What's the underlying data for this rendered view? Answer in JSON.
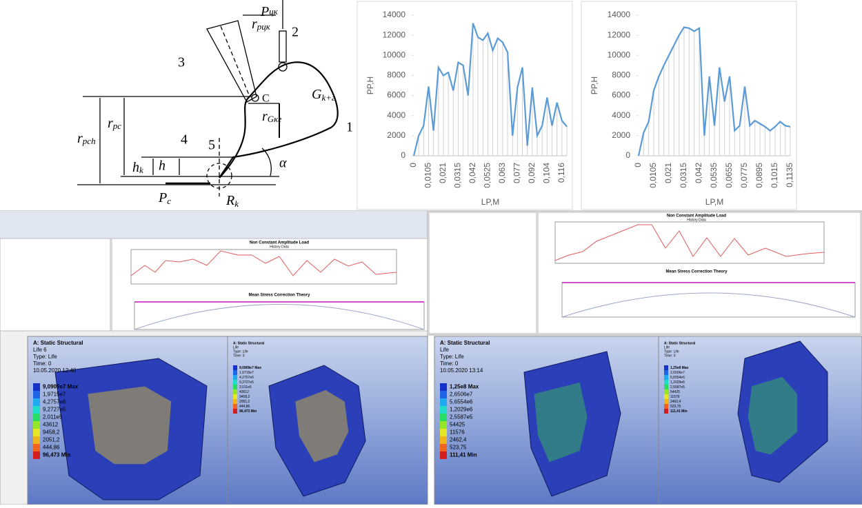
{
  "diagram": {
    "labels": [
      {
        "main": "P",
        "sub": "цк"
      },
      {
        "main": "r",
        "sub": "рцк"
      },
      {
        "main": "2"
      },
      {
        "main": "3"
      },
      {
        "main": "C"
      },
      {
        "main": "G",
        "sub": "k+г"
      },
      {
        "main": "r",
        "sub": "Gкг"
      },
      {
        "main": "1"
      },
      {
        "main": "4"
      },
      {
        "main": "5"
      },
      {
        "main": "h",
        "sub": "k"
      },
      {
        "main": "h"
      },
      {
        "main": "α"
      },
      {
        "main": "r",
        "sub": "рсh"
      },
      {
        "main": "r",
        "sub": "рс"
      },
      {
        "main": "P",
        "sub": "c"
      },
      {
        "main": "R",
        "sub": "k"
      }
    ]
  },
  "chart_data": [
    {
      "type": "line",
      "color": "#5b9bd5",
      "xlabel": "LP,M",
      "ylabel": "PP,H",
      "categories": [
        "0",
        null,
        null,
        "0,0105",
        null,
        null,
        "0,021",
        null,
        null,
        "0,0315",
        null,
        null,
        "0,042",
        null,
        null,
        "0,0525",
        null,
        null,
        "0,063",
        null,
        null,
        "0,077",
        null,
        null,
        "0,092",
        null,
        null,
        "0,104",
        null,
        null,
        "0,116",
        null
      ],
      "values": [
        0,
        2000,
        3000,
        6900,
        2500,
        8800,
        8000,
        8300,
        6500,
        9300,
        9000,
        6000,
        13200,
        11800,
        11500,
        12200,
        10500,
        11700,
        11300,
        10300,
        2000,
        6800,
        8800,
        1000,
        6800,
        2000,
        3000,
        5800,
        3000,
        5300,
        3500,
        2900
      ],
      "ylim": [
        0,
        14000
      ],
      "yticks": [
        0,
        2000,
        4000,
        6000,
        8000,
        10000,
        12000,
        14000
      ],
      "drop_lines": true
    },
    {
      "type": "line",
      "color": "#5b9bd5",
      "xlabel": "LP,M",
      "ylabel": "PP,H",
      "categories": [
        "0",
        null,
        null,
        "0,0105",
        null,
        null,
        "0,021",
        null,
        null,
        "0,0315",
        null,
        null,
        "0,042",
        null,
        null,
        "0,0535",
        null,
        null,
        "0,0655",
        null,
        null,
        "0,0775",
        null,
        null,
        "0,0895",
        null,
        null,
        "0,1015",
        null,
        null,
        "0,1135"
      ],
      "values": [
        0,
        2300,
        3400,
        6500,
        7900,
        9000,
        10000,
        11000,
        12000,
        12800,
        12700,
        12400,
        12700,
        2000,
        7900,
        3000,
        8800,
        5400,
        7900,
        2500,
        3000,
        6900,
        3000,
        3500,
        3200,
        2900,
        2500,
        2900,
        3400,
        3000,
        2900
      ],
      "ylim": [
        0,
        14000
      ],
      "yticks": [
        0,
        2000,
        4000,
        6000,
        8000,
        10000,
        12000,
        14000
      ],
      "drop_lines": true
    }
  ],
  "screens": [
    {
      "chart_title": "Non Constant Amplitude Load",
      "chart_subtitle": "History Data",
      "theory_title": "Mean Stress Correction Theory"
    },
    {
      "chart_title": "Non Constant Amplitude Load",
      "chart_subtitle": "History Data",
      "theory_title": "Mean Stress Correction Theory"
    }
  ],
  "fea_panels": [
    {
      "header": [
        "A: Static Structural",
        "Life 6",
        "Type: Life",
        "Time: 0",
        "10.05.2020 12:40"
      ],
      "legend": [
        "9,0909e7 Max",
        "1,9715e7",
        "4,2757e6",
        "9,2727e5",
        "2,011e5",
        "43612",
        "9458,2",
        "2051,2",
        "444,86",
        "96,473 Min"
      ]
    },
    {
      "header": [
        "A: Static Structural",
        "Life",
        "Type: Life",
        "Time: 0"
      ],
      "legend": [
        "9,0909e7 Max",
        "1,9715e7",
        "4,2757e6",
        "9,2727e5",
        "2,011e5",
        "43612",
        "9458,2",
        "2051,2",
        "444,86",
        "96,473 Min"
      ]
    },
    {
      "header": [
        "A: Static Structural",
        "Life",
        "Type: Life",
        "Time: 0",
        "10.05.2020 13:14"
      ],
      "legend": [
        "1,25e8 Max",
        "2,6506e7",
        "5,6554e6",
        "1,2029e6",
        "2,5587e5",
        "54425",
        "11576",
        "2462,4",
        "523,75",
        "111,41 Min"
      ]
    },
    {
      "header": [
        "A: Static Structural",
        "Life",
        "Type: Life",
        "Time: 0"
      ],
      "legend": [
        "1,25e8 Max",
        "2,6506e7",
        "5,6554e6",
        "1,2029e6",
        "2,5587e5",
        "54425",
        "11576",
        "2462,4",
        "523,75",
        "111,41 Min"
      ]
    }
  ]
}
